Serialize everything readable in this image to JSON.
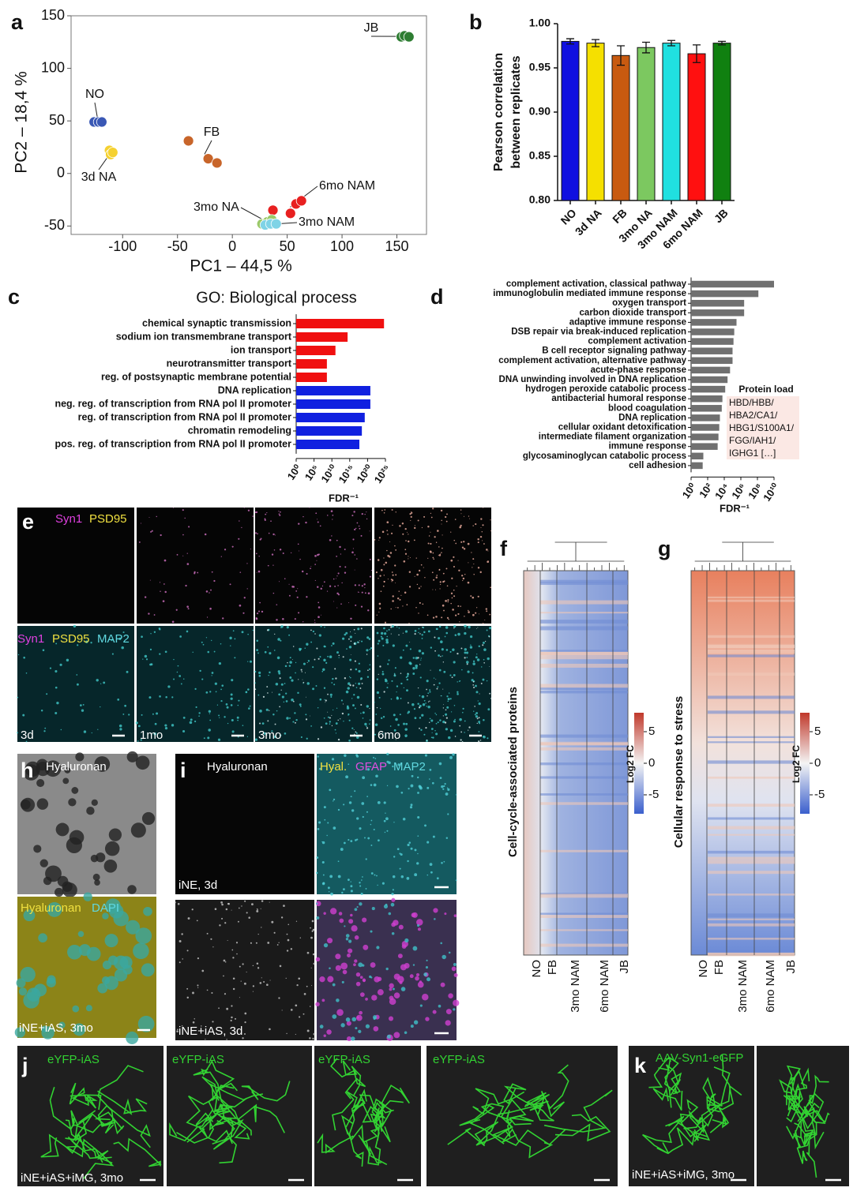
{
  "panel_letters": [
    "a",
    "b",
    "c",
    "d",
    "e",
    "f",
    "g",
    "h",
    "i",
    "j",
    "k"
  ],
  "chart_data": [
    {
      "type": "scatter",
      "xlabel": "PC1 – 44,5 %",
      "ylabel": "PC2 – 18,4 %",
      "xlim": [
        -147,
        177
      ],
      "ylim": [
        -58,
        150
      ],
      "xticks": [
        -100,
        -50,
        0,
        50,
        100,
        150
      ],
      "yticks": [
        -50,
        0,
        50,
        100,
        150
      ],
      "series": [
        {
          "name": "NO",
          "color": "#3a58b5",
          "x": [
            -126,
            -122,
            -119
          ],
          "y": [
            49,
            49,
            49
          ]
        },
        {
          "name": "3d NA",
          "color": "#f5d130",
          "x": [
            -112,
            -111,
            -109
          ],
          "y": [
            22,
            18,
            20
          ]
        },
        {
          "name": "FB",
          "color": "#c8652a",
          "x": [
            -40,
            -22,
            -14
          ],
          "y": [
            31,
            14,
            10
          ]
        },
        {
          "name": "JB",
          "color": "#2e7d32",
          "x": [
            154,
            157,
            161
          ],
          "y": [
            130,
            131,
            130
          ]
        },
        {
          "name": "6mo NAM",
          "color": "#e82020",
          "x": [
            37,
            53,
            58,
            63
          ],
          "y": [
            -35,
            -38,
            -29,
            -26
          ]
        },
        {
          "name": "3mo NA",
          "color": "#9bc96a",
          "x": [
            27,
            32,
            36
          ],
          "y": [
            -48,
            -46,
            -44
          ]
        },
        {
          "name": "3mo NAM",
          "color": "#7fd3e6",
          "x": [
            30,
            35,
            40
          ],
          "y": [
            -49,
            -48,
            -48
          ]
        }
      ]
    },
    {
      "type": "bar",
      "ylabel": [
        "Pearson correlation",
        "between replicates"
      ],
      "categories": [
        "NO",
        "3d NA",
        "FB",
        "3mo NA",
        "3mo NAM",
        "6mo NAM",
        "JB"
      ],
      "values": [
        0.98,
        0.978,
        0.964,
        0.973,
        0.978,
        0.966,
        0.978
      ],
      "errors": [
        0.003,
        0.004,
        0.011,
        0.006,
        0.003,
        0.01,
        0.002
      ],
      "colors": [
        "#1010e0",
        "#f5e000",
        "#c85a10",
        "#7cc860",
        "#20e0e0",
        "#ff1010",
        "#108010"
      ],
      "ylim": [
        0.8,
        1.0
      ],
      "yticks": [
        {
          "value": 0.8,
          "label": "0.80"
        },
        {
          "value": 0.85,
          "label": "0.85"
        },
        {
          "value": 0.9,
          "label": "0.90"
        },
        {
          "value": 0.95,
          "label": "0.95"
        },
        {
          "value": 1.0,
          "label": "1.00"
        }
      ]
    },
    {
      "type": "barh",
      "title": "GO: Biological process",
      "xlabel": "FDR⁻¹",
      "log_scale": true,
      "categories": [
        "chemical synaptic transmission",
        "sodium ion transmembrane transport",
        "ion transport",
        "neurotransmitter transport",
        "reg. of postsynaptic membrane potential",
        "DNA replication",
        "neg. reg. of transcription from RNA pol II promoter",
        "reg. of transcription from RNA pol II promoter",
        "chromatin remodeling",
        "pos. reg. of transcription from RNA pol II promoter"
      ],
      "values": [
        4e+24,
        250000000000000.0,
        100000000000.0,
        400000000.0,
        400000000.0,
        6e+20,
        6e+20,
        1.6e+19,
        2.5e+18,
        5e+17
      ],
      "colors": [
        "#f01010",
        "#f01010",
        "#f01010",
        "#f01010",
        "#f01010",
        "#1020e0",
        "#1020e0",
        "#1020e0",
        "#1020e0",
        "#1020e0"
      ],
      "xlim": [
        1,
        1e+25
      ],
      "xticks": [
        {
          "value": 1,
          "label": "10⁰"
        },
        {
          "value": 100000.0,
          "label": "10⁵"
        },
        {
          "value": 10000000000.0,
          "label": "10¹⁰"
        },
        {
          "value": 1000000000000000.0,
          "label": "10¹⁵"
        },
        {
          "value": 1e+20,
          "label": "10²⁰"
        },
        {
          "value": 1e+25,
          "label": "10²⁵"
        }
      ]
    },
    {
      "type": "barh",
      "xlabel": "FDR⁻¹",
      "log_scale": true,
      "color": "#707070",
      "categories": [
        "complement activation, classical pathway",
        "immunoglobulin mediated immune response",
        "oxygen transport",
        "carbon dioxide transport",
        "adaptive immune response",
        "DSB repair via break-induced replication",
        "complement activation",
        "B cell receptor signaling pathway",
        "complement activation, alternative pathway",
        "acute-phase response",
        "DNA unwinding involved in DNA replication",
        "hydrogen peroxide catabolic process",
        "antibacterial humoral response",
        "blood coagulation",
        "DNA replication",
        "cellular oxidant detoxification",
        "intermediate filament organization",
        "immune response",
        "glycosaminoglycan catabolic process",
        "cell adhesion"
      ],
      "values": [
        10000000000.0,
        130000000.0,
        2500000.0,
        2500000.0,
        300000.0,
        160000.0,
        130000.0,
        100000.0,
        100000.0,
        50000.0,
        25000.0,
        13000.0,
        6000.0,
        5000.0,
        3000.0,
        2500.0,
        2000.0,
        1600.0,
        30,
        25
      ],
      "xlim": [
        1,
        10000000000.0
      ],
      "xticks": [
        {
          "value": 1,
          "label": "10⁰"
        },
        {
          "value": 100,
          "label": "10²"
        },
        {
          "value": 10000,
          "label": "10⁴"
        },
        {
          "value": 1000000,
          "label": "10⁶"
        },
        {
          "value": 100000000,
          "label": "10⁸"
        },
        {
          "value": 10000000000,
          "label": "10¹⁰"
        }
      ],
      "annotation_title": "Protein load",
      "annotation_lines": [
        "HBD/HBB/",
        "HBA2/CA1/",
        "HBG1/S100A1/",
        "FGG/IAH1/",
        "IGHG1 […]"
      ]
    }
  ],
  "heatmaps": [
    {
      "ylabel": "Cell-cycle-associated proteins",
      "columns": [
        "NO",
        "FB",
        "3mo NAM",
        "6mo NAM",
        "JB"
      ],
      "colorbar_label": "Log2 FC",
      "clim": [
        -8,
        8
      ],
      "colorbar_ticks": [
        5,
        0,
        -5
      ]
    },
    {
      "ylabel": "Cellular response to stress",
      "columns": [
        "NO",
        "FB",
        "3mo NAM",
        "6mo NAM",
        "JB"
      ],
      "colorbar_label": "Log2 FC",
      "clim": [
        -8,
        8
      ],
      "colorbar_ticks": [
        5,
        0,
        -5
      ]
    }
  ],
  "panels": {
    "e": {
      "row1_labels": [
        "Syn1",
        "PSD95"
      ],
      "row2_labels": [
        "Syn1",
        "PSD95",
        "MAP2"
      ],
      "timepoints": [
        "3d",
        "1mo",
        "3mo",
        "6mo"
      ]
    },
    "h": {
      "top_label": "Hyaluronan",
      "bottom_labels": [
        "Hyaluronan",
        "DAPI"
      ],
      "caption": "iNE+iAS, 3mo"
    },
    "i": {
      "top_left_label": "Hyaluronan",
      "top_right_labels": [
        "Hyal.",
        "GFAP",
        "MAP2"
      ],
      "top_caption": "iNE, 3d",
      "bottom_caption": "iNE+iAS, 3d"
    },
    "j": {
      "labels": [
        "eYFP-iAS",
        "eYFP-iAS",
        "eYFP-iAS",
        "eYFP-iAS"
      ],
      "caption": "iNE+iAS+iMG, 3mo"
    },
    "k": {
      "label": "AAV-Syn1-eGFP",
      "caption": "iNE+iAS+iMG, 3mo"
    }
  }
}
